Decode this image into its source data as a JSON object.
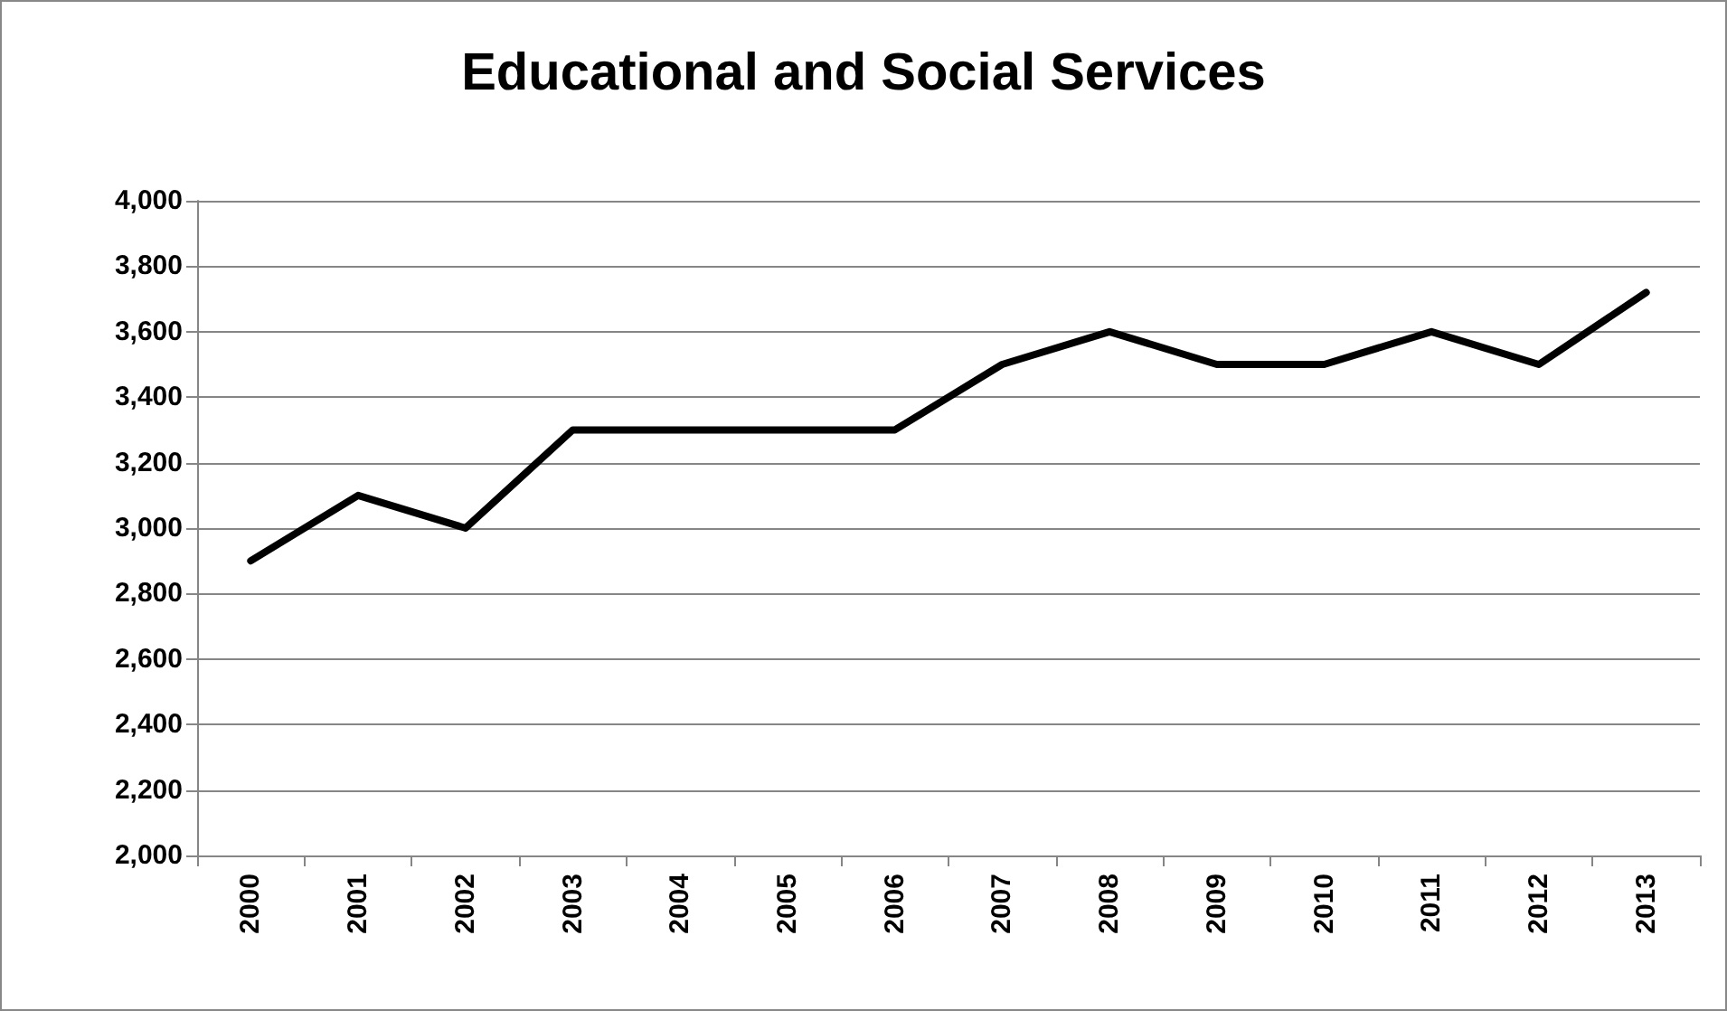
{
  "chart_data": {
    "type": "line",
    "title": "Educational and Social Services",
    "categories": [
      "2000",
      "2001",
      "2002",
      "2003",
      "2004",
      "2005",
      "2006",
      "2007",
      "2008",
      "2009",
      "2010",
      "2011",
      "2012",
      "2013"
    ],
    "series": [
      {
        "color": "#000000",
        "values": [
          2900,
          3100,
          3000,
          3300,
          3300,
          3300,
          3300,
          3500,
          3600,
          3500,
          3500,
          3600,
          3500,
          3720
        ]
      }
    ],
    "ylim": [
      2000,
      4000
    ],
    "yticks": [
      {
        "value": 2000,
        "label": "2,000"
      },
      {
        "value": 2200,
        "label": "2,200"
      },
      {
        "value": 2400,
        "label": "2,400"
      },
      {
        "value": 2600,
        "label": "2,600"
      },
      {
        "value": 2800,
        "label": "2,800"
      },
      {
        "value": 3000,
        "label": "3,000"
      },
      {
        "value": 3200,
        "label": "3,200"
      },
      {
        "value": 3400,
        "label": "3,400"
      },
      {
        "value": 3600,
        "label": "3,600"
      },
      {
        "value": 3800,
        "label": "3,800"
      },
      {
        "value": 4000,
        "label": "4,000"
      }
    ],
    "grid": "y",
    "marker": "none",
    "line_style": "solid"
  }
}
